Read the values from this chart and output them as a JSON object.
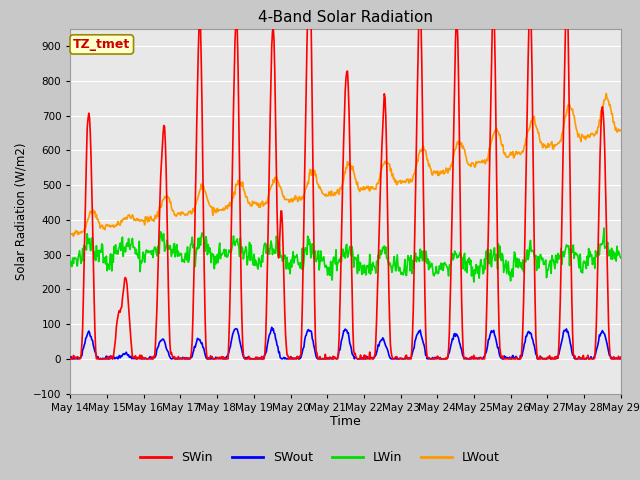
{
  "title": "4-Band Solar Radiation",
  "xlabel": "Time",
  "ylabel": "Solar Radiation (W/m2)",
  "ylim": [
    -100,
    950
  ],
  "yticks": [
    -100,
    0,
    100,
    200,
    300,
    400,
    500,
    600,
    700,
    800,
    900
  ],
  "annotation": "TZ_tmet",
  "annotation_color": "#cc0000",
  "annotation_bg": "#ffffcc",
  "annotation_edge": "#998800",
  "x_labels": [
    "May 14",
    "May 15",
    "May 16",
    "May 17",
    "May 18",
    "May 19",
    "May 20",
    "May 21",
    "May 22",
    "May 23",
    "May 24",
    "May 25",
    "May 26",
    "May 27",
    "May 28",
    "May 29"
  ],
  "colors": {
    "SWin": "#ff0000",
    "SWout": "#0000ff",
    "LWin": "#00dd00",
    "LWout": "#ff9900"
  },
  "fig_bg_color": "#c8c8c8",
  "plot_bg_color": "#e8e8e8",
  "grid_color": "#ffffff",
  "line_width": 1.2,
  "n_days": 15
}
